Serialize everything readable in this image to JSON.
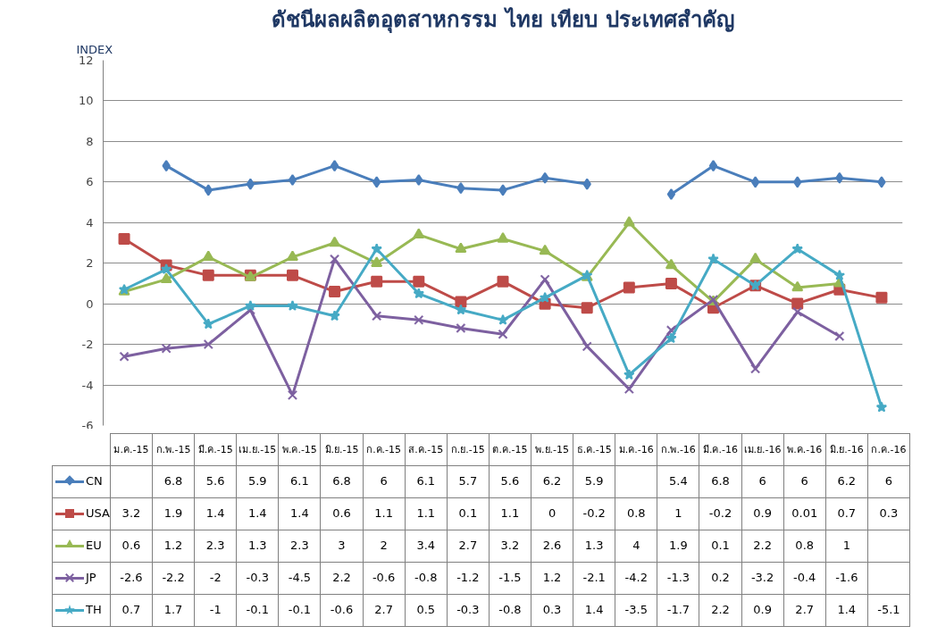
{
  "chart_data": {
    "type": "line",
    "title": "ดัชนีผลผลิตอุตสาหกรรม ไทย เทียบ ประเทศสำคัญ",
    "ylabel": "INDEX",
    "categories": [
      "ม.ค.-15",
      "ก.พ.-15",
      "มี.ค.-15",
      "เม.ย.-15",
      "พ.ค.-15",
      "มิ.ย.-15",
      "ก.ค.-15",
      "ส.ค.-15",
      "ก.ย.-15",
      "ต.ค.-15",
      "พ.ย.-15",
      "ธ.ค.-15",
      "ม.ค.-16",
      "ก.พ.-16",
      "มี.ค.-16",
      "เม.ย.-16",
      "พ.ค.-16",
      "มิ.ย.-16",
      "ก.ค.-16"
    ],
    "series": [
      {
        "name": "CN",
        "color": "#4a7ebb",
        "marker": "diamond",
        "values": [
          null,
          6.8,
          5.6,
          5.9,
          6.1,
          6.8,
          6,
          6.1,
          5.7,
          5.6,
          6.2,
          5.9,
          null,
          5.4,
          6.8,
          6,
          6,
          6.2,
          6
        ]
      },
      {
        "name": "USA",
        "color": "#be4b48",
        "marker": "square",
        "values": [
          3.2,
          1.9,
          1.4,
          1.4,
          1.4,
          0.6,
          1.1,
          1.1,
          0.1,
          1.1,
          0,
          -0.2,
          0.8,
          1,
          -0.2,
          0.9,
          0.01,
          0.7,
          0.3
        ]
      },
      {
        "name": "EU",
        "color": "#98b954",
        "marker": "triangle",
        "values": [
          0.6,
          1.2,
          2.3,
          1.3,
          2.3,
          3,
          2,
          3.4,
          2.7,
          3.2,
          2.6,
          1.3,
          4,
          1.9,
          0.1,
          2.2,
          0.8,
          1,
          null
        ]
      },
      {
        "name": "JP",
        "color": "#7d60a0",
        "marker": "cross",
        "values": [
          -2.6,
          -2.2,
          -2,
          -0.3,
          -4.5,
          2.2,
          -0.6,
          -0.8,
          -1.2,
          -1.5,
          1.2,
          -2.1,
          -4.2,
          -1.3,
          0.2,
          -3.2,
          -0.4,
          -1.6,
          null
        ]
      },
      {
        "name": "TH",
        "color": "#46aac5",
        "marker": "star",
        "values": [
          0.7,
          1.7,
          -1,
          -0.1,
          -0.1,
          -0.6,
          2.7,
          0.5,
          -0.3,
          -0.8,
          0.3,
          1.4,
          -3.5,
          -1.7,
          2.2,
          0.9,
          2.7,
          1.4,
          -5.1
        ]
      }
    ],
    "ylim": [
      -6,
      12
    ],
    "yticks": [
      -6,
      -4,
      -2,
      0,
      2,
      4,
      6,
      8,
      10,
      12
    ],
    "grid": "y",
    "legend": "bottom",
    "data_labels": true
  }
}
